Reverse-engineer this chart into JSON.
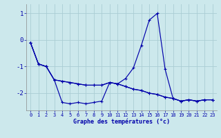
{
  "title": "Graphe des températures (°c)",
  "bg_color": "#cce8ec",
  "grid_color": "#aacdd4",
  "line_color": "#0000aa",
  "xlim": [
    -0.5,
    23.5
  ],
  "ylim": [
    -2.65,
    1.35
  ],
  "yticks": [
    -2,
    -1,
    0,
    1
  ],
  "xticks": [
    0,
    1,
    2,
    3,
    4,
    5,
    6,
    7,
    8,
    9,
    10,
    11,
    12,
    13,
    14,
    15,
    16,
    17,
    18,
    19,
    20,
    21,
    22,
    23
  ],
  "line_spike_y": [
    -0.1,
    -0.9,
    -1.0,
    -1.5,
    -1.55,
    -1.6,
    -1.65,
    -1.7,
    -1.7,
    -1.7,
    -1.6,
    -1.65,
    -1.45,
    -1.05,
    -0.2,
    0.75,
    1.0,
    -1.1,
    -2.2,
    -2.3,
    -2.25,
    -2.3,
    -2.25,
    -2.25
  ],
  "line_mid_y": [
    -0.1,
    -0.9,
    -1.0,
    -1.5,
    -1.55,
    -1.6,
    -1.65,
    -1.7,
    -1.7,
    -1.7,
    -1.6,
    -1.65,
    -1.75,
    -1.85,
    -1.9,
    -2.0,
    -2.05,
    -2.15,
    -2.2,
    -2.3,
    -2.25,
    -2.3,
    -2.25,
    -2.25
  ],
  "line_low_y": [
    -0.1,
    -0.9,
    -1.0,
    -1.5,
    -2.35,
    -2.4,
    -2.35,
    -2.4,
    -2.35,
    -2.3,
    -1.6,
    -1.65,
    -1.75,
    -1.85,
    -1.9,
    -2.0,
    -2.05,
    -2.15,
    -2.2,
    -2.3,
    -2.25,
    -2.3,
    -2.25,
    -2.25
  ]
}
